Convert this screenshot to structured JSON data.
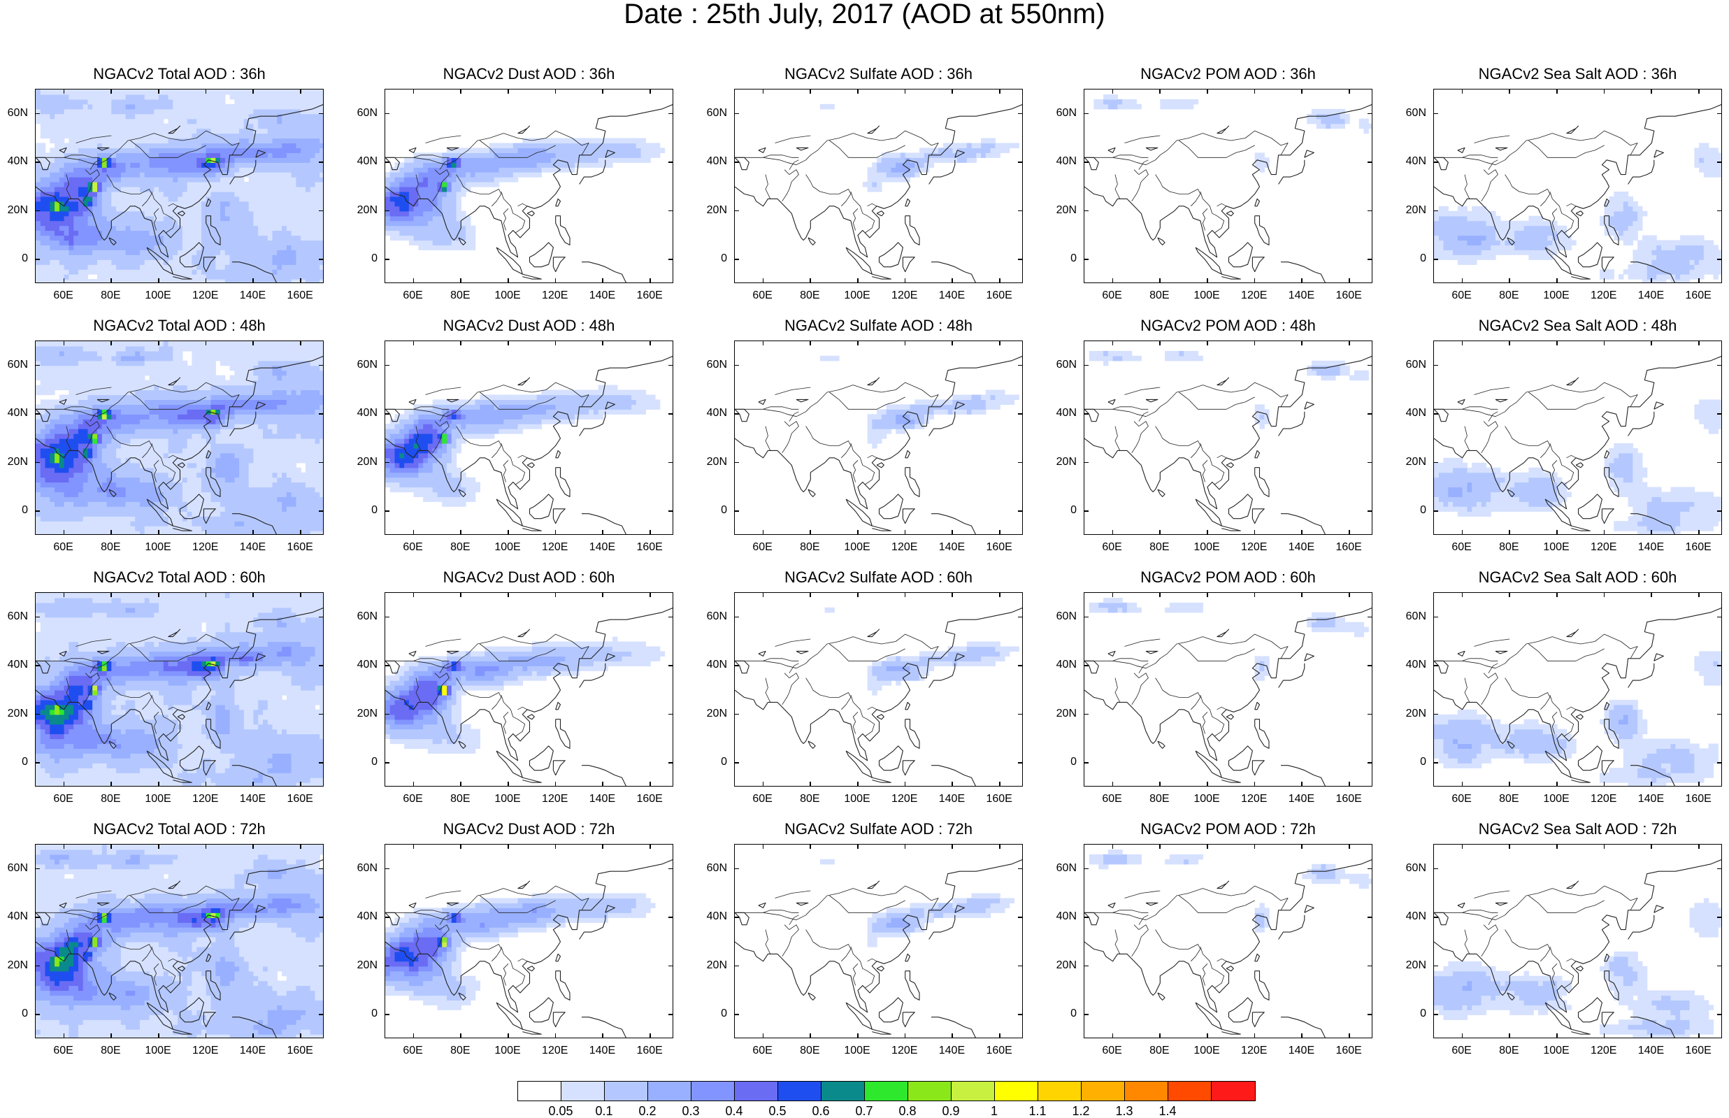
{
  "title": "Date : 25th July, 2017 (AOD at 550nm)",
  "lat_labels": [
    "60N",
    "40N",
    "20N",
    "0"
  ],
  "lon_labels": [
    "60E",
    "80E",
    "100E",
    "120E",
    "140E",
    "160E"
  ],
  "rows": [
    {
      "forecast": "36h",
      "titles": [
        "NGACv2 Total AOD : 36h",
        "NGACv2 Dust AOD : 36h",
        "NGACv2 Sulfate AOD : 36h",
        "NGACv2 POM AOD : 36h",
        "NGACv2 Sea Salt AOD : 36h"
      ]
    },
    {
      "forecast": "48h",
      "titles": [
        "NGACv2 Total AOD : 48h",
        "NGACv2 Dust AOD : 48h",
        "NGACv2 Sulfate AOD : 48h",
        "NGACv2 POM AOD : 48h",
        "NGACv2 Sea Salt AOD : 48h"
      ]
    },
    {
      "forecast": "60h",
      "titles": [
        "NGACv2 Total AOD : 60h",
        "NGACv2 Dust AOD : 60h",
        "NGACv2 Sulfate AOD : 60h",
        "NGACv2 POM AOD : 60h",
        "NGACv2 Sea Salt AOD : 60h"
      ]
    },
    {
      "forecast": "72h",
      "titles": [
        "NGACv2 Total AOD : 72h",
        "NGACv2 Dust AOD : 72h",
        "NGACv2 Sulfate AOD : 72h",
        "NGACv2 POM AOD : 72h",
        "NGACv2 Sea Salt  AOD : 72h"
      ]
    }
  ],
  "colorbar": {
    "colors": [
      "#ffffff",
      "#d6e1ff",
      "#b4c8ff",
      "#98b0ff",
      "#8294ff",
      "#6a6cf4",
      "#1f4ef0",
      "#0a8a8a",
      "#2ee82e",
      "#8ae81a",
      "#c8f040",
      "#ffff00",
      "#ffd400",
      "#ffb000",
      "#ff8800",
      "#ff4a00",
      "#ff1a1a"
    ],
    "labels": [
      "0.05",
      "0.1",
      "0.2",
      "0.3",
      "0.4",
      "0.5",
      "0.6",
      "0.7",
      "0.8",
      "0.9",
      "1",
      "1.1",
      "1.2",
      "1.3",
      "1.4"
    ]
  }
}
